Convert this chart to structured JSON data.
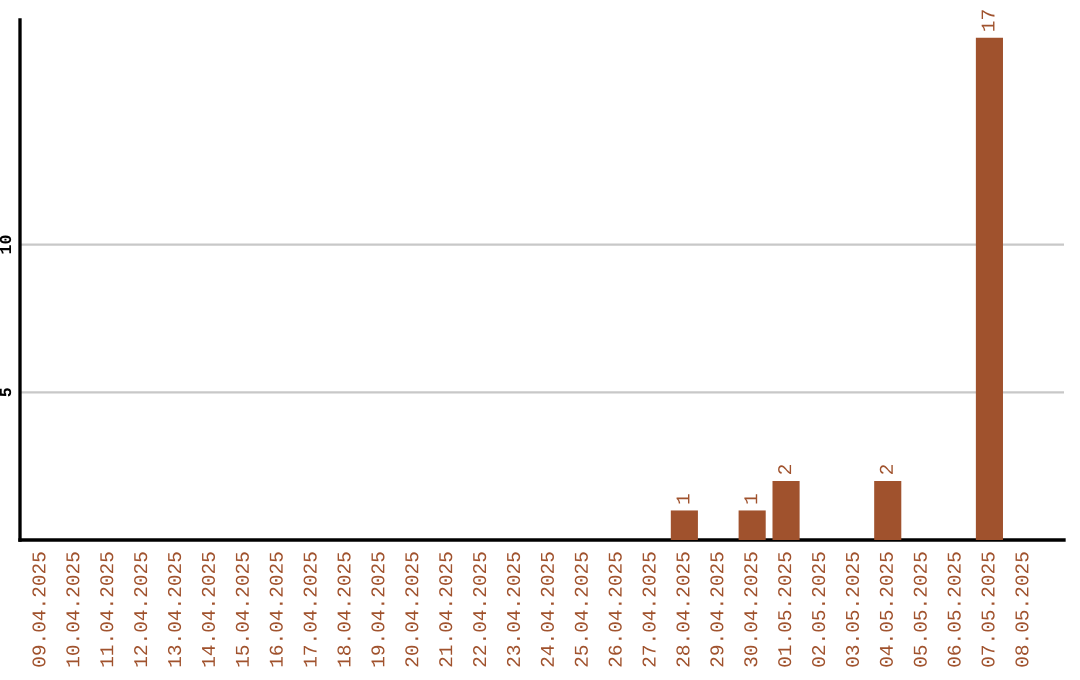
{
  "chart_data": {
    "type": "bar",
    "categories": [
      "09.04.2025",
      "10.04.2025",
      "11.04.2025",
      "12.04.2025",
      "13.04.2025",
      "14.04.2025",
      "15.04.2025",
      "16.04.2025",
      "17.04.2025",
      "18.04.2025",
      "19.04.2025",
      "20.04.2025",
      "21.04.2025",
      "22.04.2025",
      "23.04.2025",
      "24.04.2025",
      "25.04.2025",
      "26.04.2025",
      "27.04.2025",
      "28.04.2025",
      "29.04.2025",
      "30.04.2025",
      "01.05.2025",
      "02.05.2025",
      "03.05.2025",
      "04.05.2025",
      "05.05.2025",
      "06.05.2025",
      "07.05.2025",
      "08.05.2025"
    ],
    "values": [
      0,
      0,
      0,
      0,
      0,
      0,
      0,
      0,
      0,
      0,
      0,
      0,
      0,
      0,
      0,
      0,
      0,
      0,
      0,
      1,
      0,
      1,
      2,
      0,
      0,
      2,
      0,
      0,
      17,
      0
    ],
    "value_labels": [
      null,
      null,
      null,
      null,
      null,
      null,
      null,
      null,
      null,
      null,
      null,
      null,
      null,
      null,
      null,
      null,
      null,
      null,
      null,
      "1",
      null,
      "1",
      "2",
      null,
      null,
      "2",
      null,
      null,
      "17",
      null
    ],
    "color": "#a0522d",
    "ylim": [
      0,
      17.6
    ],
    "yticks": [
      5,
      10
    ],
    "grid": "y",
    "legend": false
  }
}
